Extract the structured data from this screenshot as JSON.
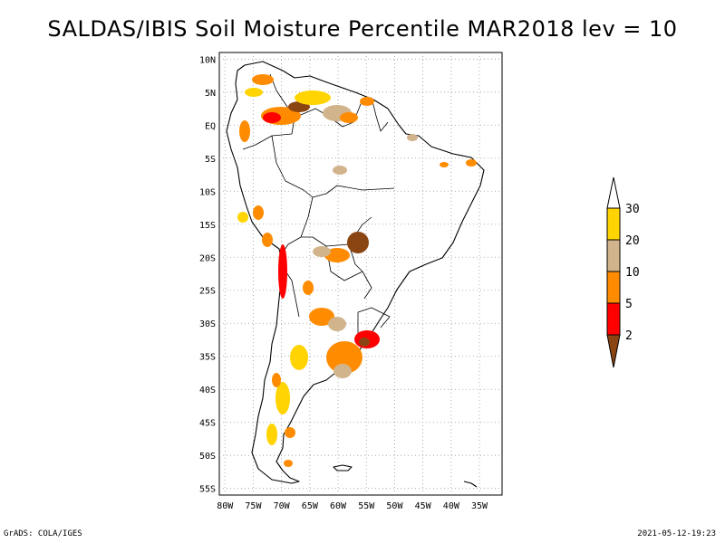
{
  "title": "SALDAS/IBIS Soil Moisture Percentile MAR2018 lev = 10",
  "footer": {
    "left": "GrADS: COLA/IGES",
    "right": "2021-05-12-19:23"
  },
  "map": {
    "region": "South America",
    "lon_range": [
      -81,
      -31
    ],
    "lat_range": [
      -56,
      11
    ],
    "grid": "dotted",
    "lat_ticks": [
      {
        "lat": 10,
        "label": "10N"
      },
      {
        "lat": 5,
        "label": "5N"
      },
      {
        "lat": 0,
        "label": "EQ"
      },
      {
        "lat": -5,
        "label": "5S"
      },
      {
        "lat": -10,
        "label": "10S"
      },
      {
        "lat": -15,
        "label": "15S"
      },
      {
        "lat": -20,
        "label": "20S"
      },
      {
        "lat": -25,
        "label": "25S"
      },
      {
        "lat": -30,
        "label": "30S"
      },
      {
        "lat": -35,
        "label": "35S"
      },
      {
        "lat": -40,
        "label": "40S"
      },
      {
        "lat": -45,
        "label": "45S"
      },
      {
        "lat": -50,
        "label": "50S"
      },
      {
        "lat": -55,
        "label": "55S"
      }
    ],
    "lon_ticks": [
      {
        "lon": -80,
        "label": "80W"
      },
      {
        "lon": -75,
        "label": "75W"
      },
      {
        "lon": -70,
        "label": "70W"
      },
      {
        "lon": -65,
        "label": "65W"
      },
      {
        "lon": -60,
        "label": "60W"
      },
      {
        "lon": -55,
        "label": "55W"
      },
      {
        "lon": -50,
        "label": "50W"
      },
      {
        "lon": -45,
        "label": "45W"
      },
      {
        "lon": -40,
        "label": "40W"
      },
      {
        "lon": -35,
        "label": "35W"
      }
    ]
  },
  "colorbar": {
    "labels": [
      "30",
      "20",
      "10",
      "5",
      "2"
    ],
    "colors": {
      "top_open": "#ffffff",
      "30": "#ffd400",
      "20": "#d2b48c",
      "10": "#ff8c00",
      "5": "#ff0000",
      "2": "#8b4513"
    }
  },
  "anomaly_colors": {
    "yellow": "#ffd400",
    "tan": "#d2b48c",
    "orange": "#ff8c00",
    "red": "#ff0000",
    "brown": "#8b4513"
  }
}
